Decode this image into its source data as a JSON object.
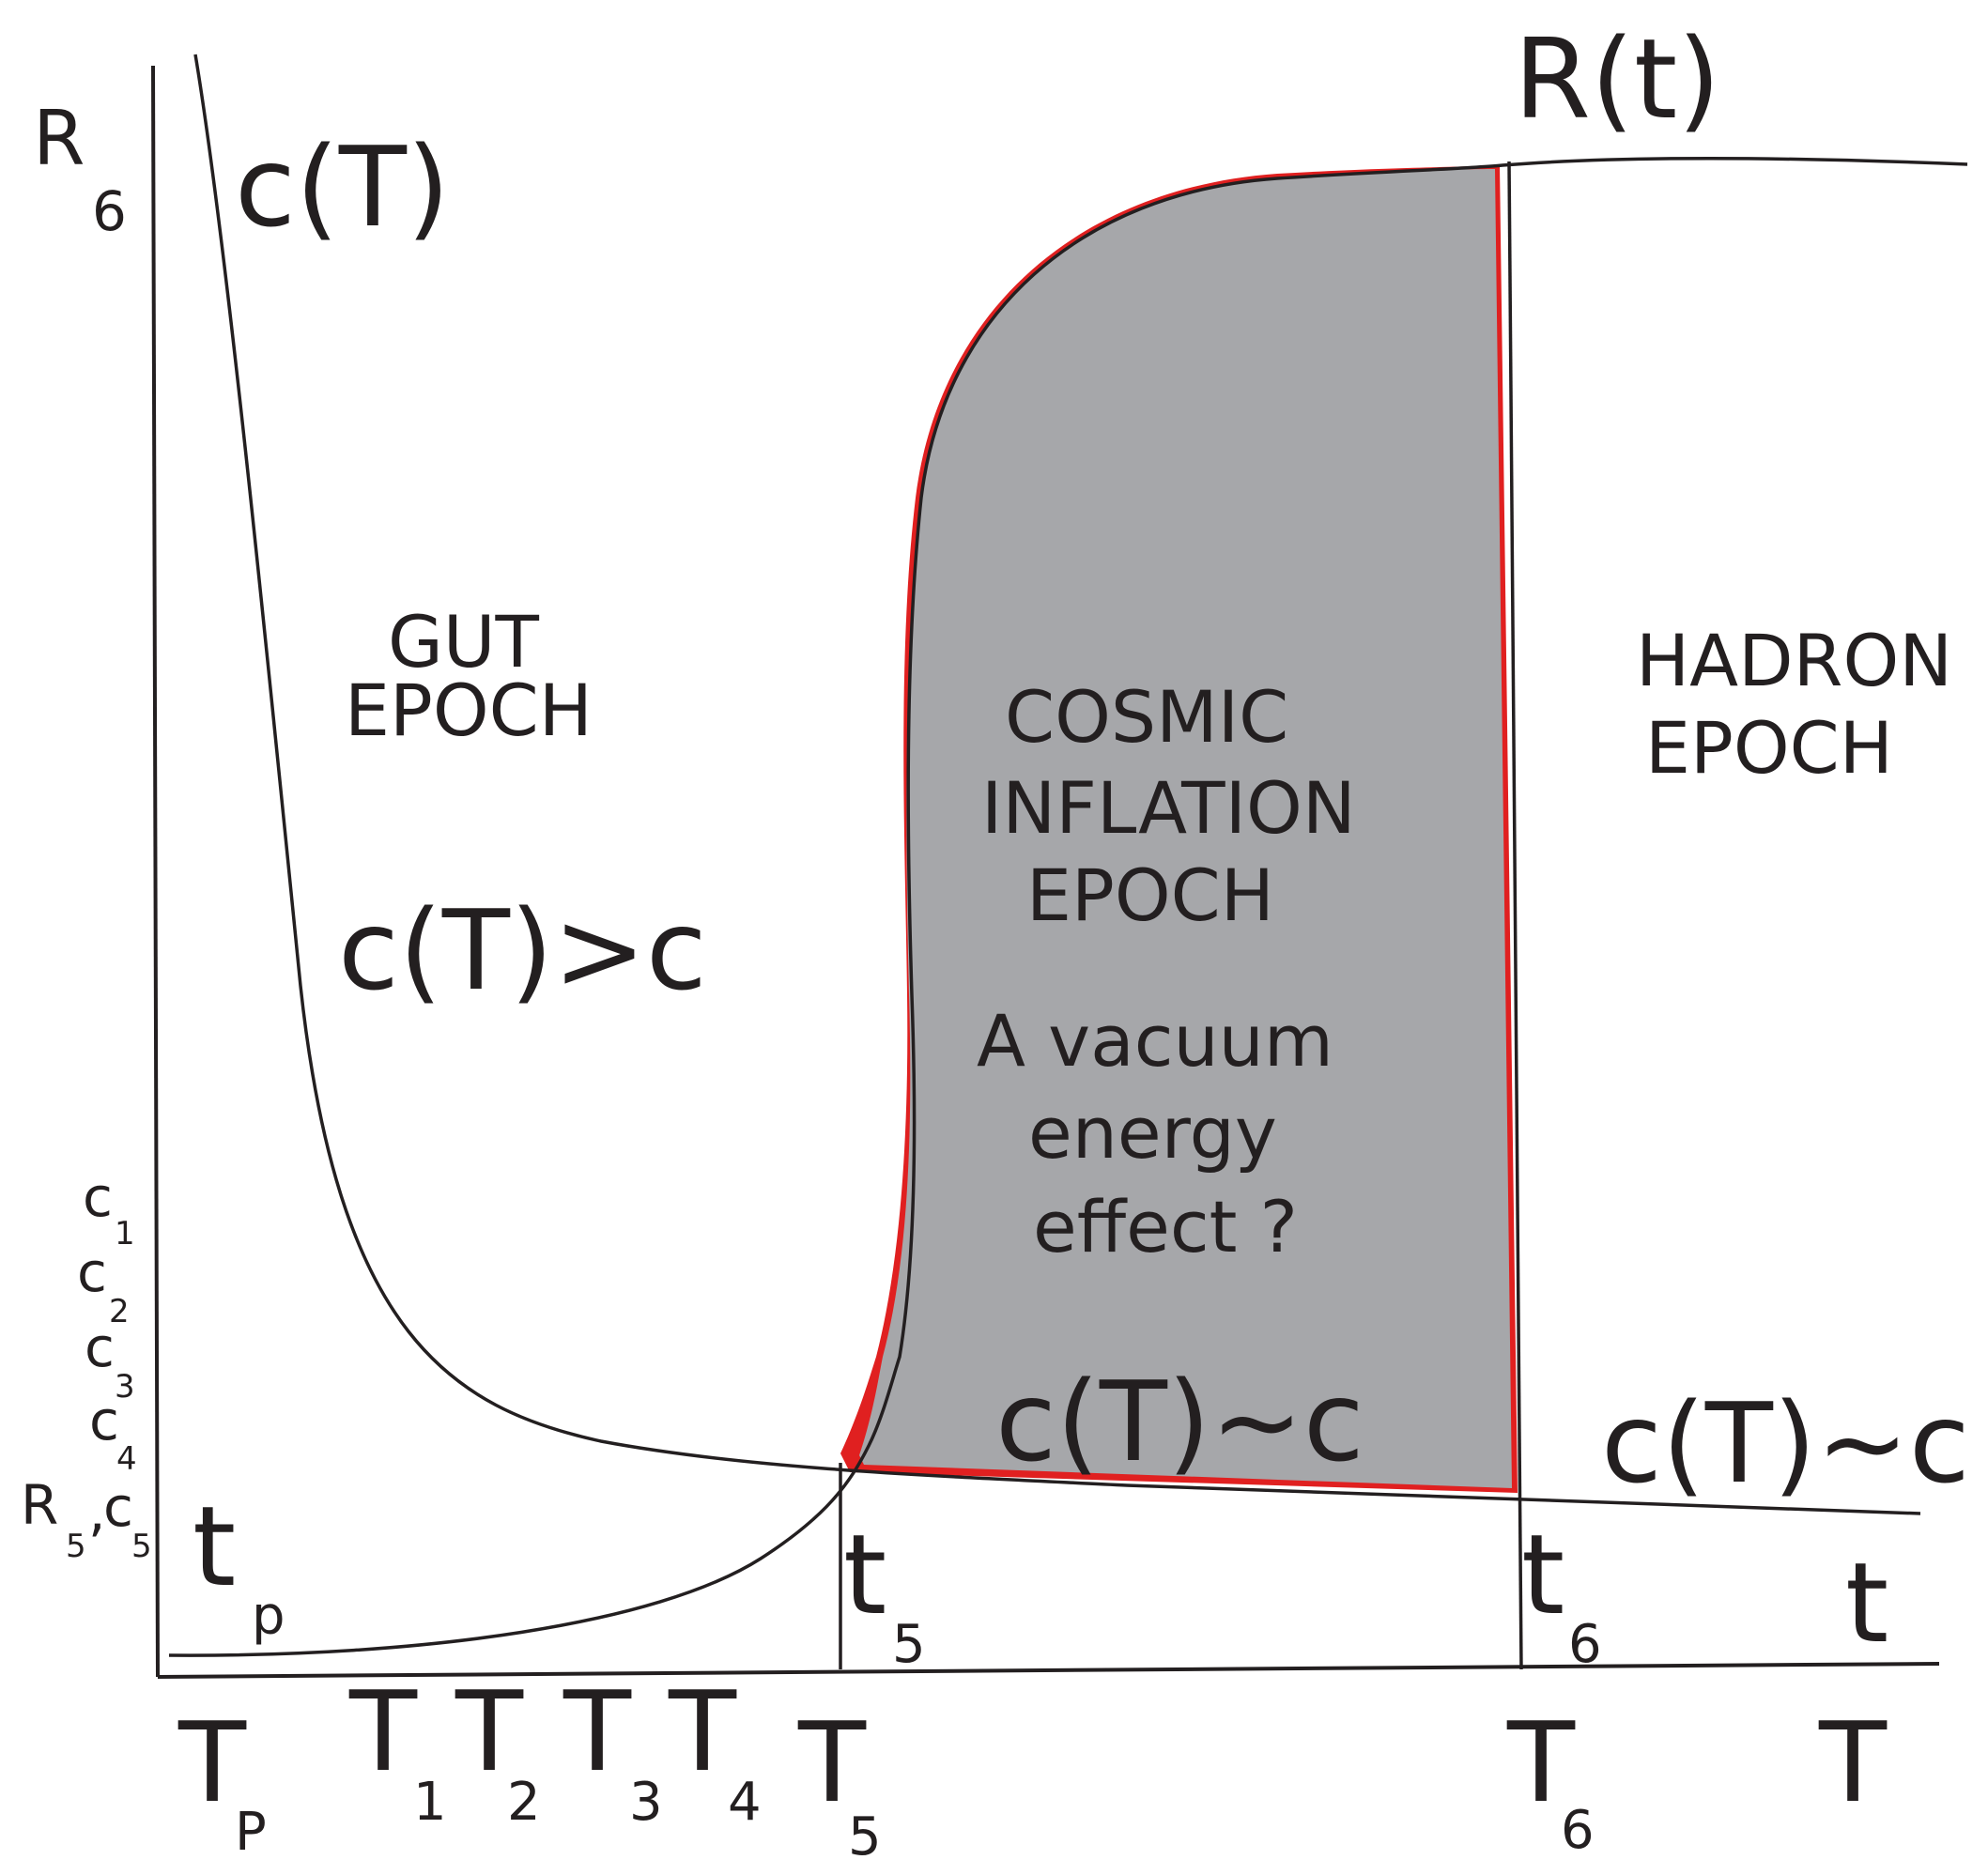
{
  "curves": {
    "ct_label": "c(T)",
    "rt_label": "R(t)"
  },
  "y_axis": {
    "r6": {
      "main": "R",
      "sub": "6"
    },
    "c1": {
      "main": "c",
      "sub": "1"
    },
    "c2": {
      "main": "c",
      "sub": "2"
    },
    "c3": {
      "main": "c",
      "sub": "3"
    },
    "c4": {
      "main": "c",
      "sub": "4"
    },
    "r5c5": {
      "r": "R",
      "rsub": "5",
      "comma": ",",
      "c": "c",
      "csub": "5"
    }
  },
  "regions": {
    "gut": {
      "line1": "GUT",
      "line2": "EPOCH",
      "condition": "c(T)>c"
    },
    "inflation": {
      "line1": "COSMIC",
      "line2": "INFLATION",
      "line3": "EPOCH",
      "note1": "A vacuum",
      "note2": "energy",
      "note3": "effect ?",
      "condition": "c(T)~c"
    },
    "hadron": {
      "line1": "HADRON",
      "line2": "EPOCH",
      "condition": "c(T)~c"
    }
  },
  "time_markers": {
    "tp": {
      "main": "t",
      "sub": "p"
    },
    "t5": {
      "main": "t",
      "sub": "5"
    },
    "t6": {
      "main": "t",
      "sub": "6"
    },
    "t": {
      "main": "t"
    }
  },
  "temperature_axis": {
    "TP": {
      "main": "T",
      "sub": "P"
    },
    "T1": {
      "main": "T",
      "sub": "1"
    },
    "T2": {
      "main": "T",
      "sub": "2"
    },
    "T3": {
      "main": "T",
      "sub": "3"
    },
    "T4": {
      "main": "T",
      "sub": "4"
    },
    "T5": {
      "main": "T",
      "sub": "5"
    },
    "T6": {
      "main": "T",
      "sub": "6"
    },
    "T": {
      "main": "T"
    }
  },
  "colors": {
    "ink": "#231f20",
    "inflation_fill": "#a6a7aa",
    "edge_highlight": "#e02020"
  }
}
